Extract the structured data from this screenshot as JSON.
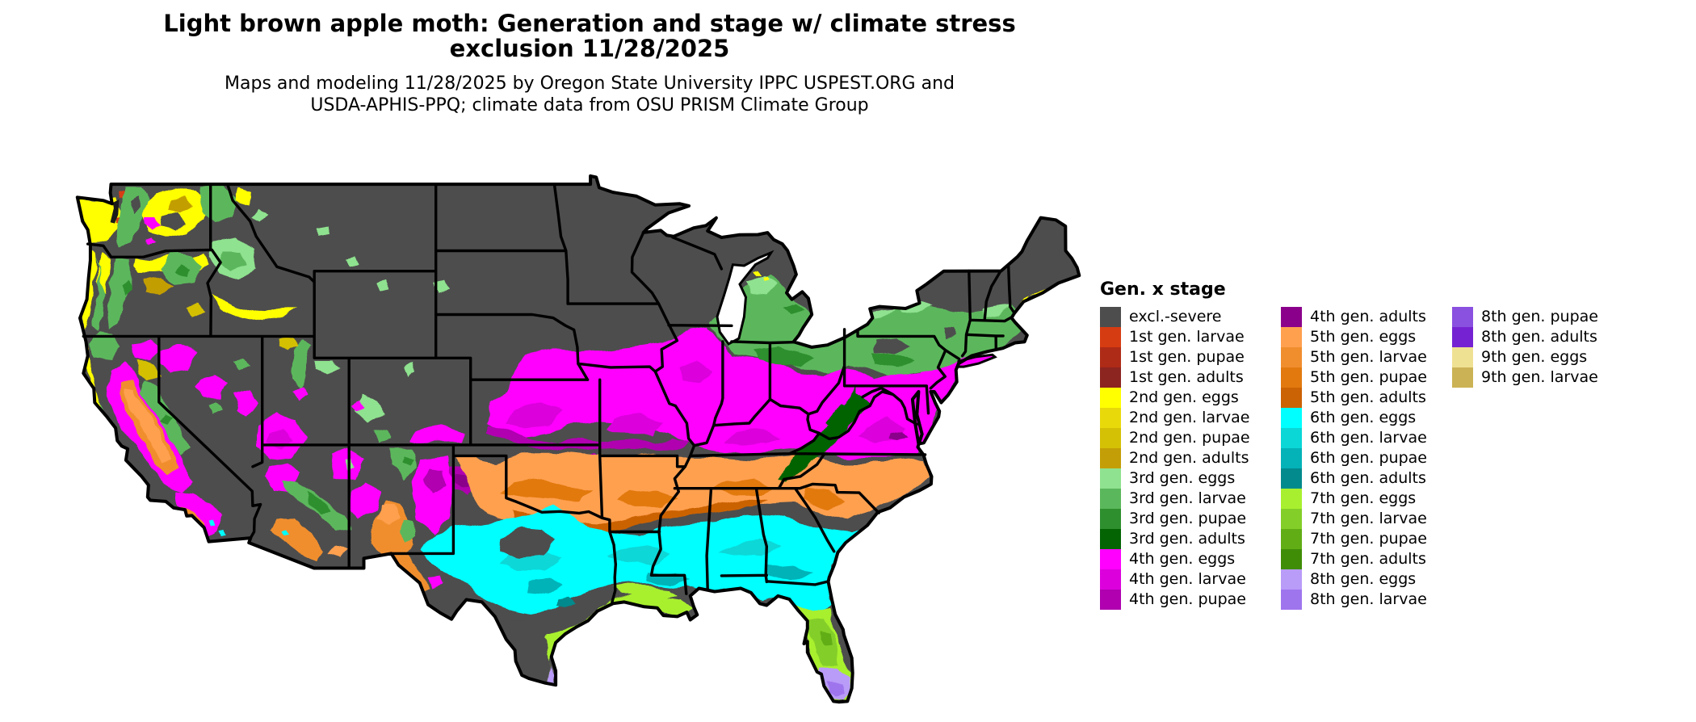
{
  "header": {
    "title_line1": "Light brown apple moth: Generation and stage w/ climate stress",
    "title_line2": "exclusion 11/28/2025",
    "subtitle_line1": "Maps and modeling 11/28/2025 by Oregon State University IPPC USPEST.ORG and",
    "subtitle_line2": "USDA-APHIS-PPQ; climate data from OSU PRISM Climate Group"
  },
  "legend": {
    "title": "Gen. x stage",
    "columns": [
      [
        {
          "key": "exc",
          "label": "excl.-severe",
          "color": "#4D4D4D"
        },
        {
          "key": "g1l",
          "label": "1st gen. larvae",
          "color": "#D63C12"
        },
        {
          "key": "g1p",
          "label": "1st gen. pupae",
          "color": "#AE2B17"
        },
        {
          "key": "g1a",
          "label": "1st gen. adults",
          "color": "#8C2420"
        },
        {
          "key": "g2e",
          "label": "2nd gen. eggs",
          "color": "#FFFF00"
        },
        {
          "key": "g2l",
          "label": "2nd gen. larvae",
          "color": "#E8D90B"
        },
        {
          "key": "g2p",
          "label": "2nd gen. pupae",
          "color": "#D4C005"
        },
        {
          "key": "g2a",
          "label": "2nd gen. adults",
          "color": "#C39E06"
        },
        {
          "key": "g3e",
          "label": "3rd gen. eggs",
          "color": "#8FE28F"
        },
        {
          "key": "g3l",
          "label": "3rd gen. larvae",
          "color": "#5BB75B"
        },
        {
          "key": "g3p",
          "label": "3rd gen. pupae",
          "color": "#2E8F2E"
        },
        {
          "key": "g3a",
          "label": "3rd gen. adults",
          "color": "#046404"
        },
        {
          "key": "g4e",
          "label": "4th gen. eggs",
          "color": "#FF00FF"
        },
        {
          "key": "g4l",
          "label": "4th gen. larvae",
          "color": "#DC00DC"
        },
        {
          "key": "g4p",
          "label": "4th gen. pupae",
          "color": "#B000B0"
        }
      ],
      [
        {
          "key": "g4a",
          "label": "4th gen. adults",
          "color": "#8B008B"
        },
        {
          "key": "g5e",
          "label": "5th gen. eggs",
          "color": "#FFA04F"
        },
        {
          "key": "g5l",
          "label": "5th gen. larvae",
          "color": "#F08E2E"
        },
        {
          "key": "g5p",
          "label": "5th gen. pupae",
          "color": "#E2790F"
        },
        {
          "key": "g5a",
          "label": "5th gen. adults",
          "color": "#CB6204"
        },
        {
          "key": "g6e",
          "label": "6th gen. eggs",
          "color": "#00FFFF"
        },
        {
          "key": "g6l",
          "label": "6th gen. larvae",
          "color": "#0BD7D7"
        },
        {
          "key": "g6p",
          "label": "6th gen. pupae",
          "color": "#03B3B8"
        },
        {
          "key": "g6a",
          "label": "6th gen. adults",
          "color": "#028A8D"
        },
        {
          "key": "g7e",
          "label": "7th gen. eggs",
          "color": "#A8F02F"
        },
        {
          "key": "g7l",
          "label": "7th gen. larvae",
          "color": "#84CE29"
        },
        {
          "key": "g7p",
          "label": "7th gen. pupae",
          "color": "#60AD15"
        },
        {
          "key": "g7a",
          "label": "7th gen. adults",
          "color": "#3F8D07"
        },
        {
          "key": "g8e",
          "label": "8th gen. eggs",
          "color": "#B99BF8"
        },
        {
          "key": "g8l",
          "label": "8th gen. larvae",
          "color": "#9F75EE"
        }
      ],
      [
        {
          "key": "g8p",
          "label": "8th gen. pupae",
          "color": "#8A50DF"
        },
        {
          "key": "g8a",
          "label": "8th gen. adults",
          "color": "#7523D2"
        },
        {
          "key": "g9e",
          "label": "9th gen. eggs",
          "color": "#EFE192"
        },
        {
          "key": "g9l",
          "label": "9th gen. larvae",
          "color": "#CBB355"
        }
      ]
    ]
  },
  "map": {
    "background": "#FFFFFF",
    "base_excluded_color": "#4D4D4D",
    "border_color": "#000000",
    "water_color": "#FFFFFF"
  }
}
